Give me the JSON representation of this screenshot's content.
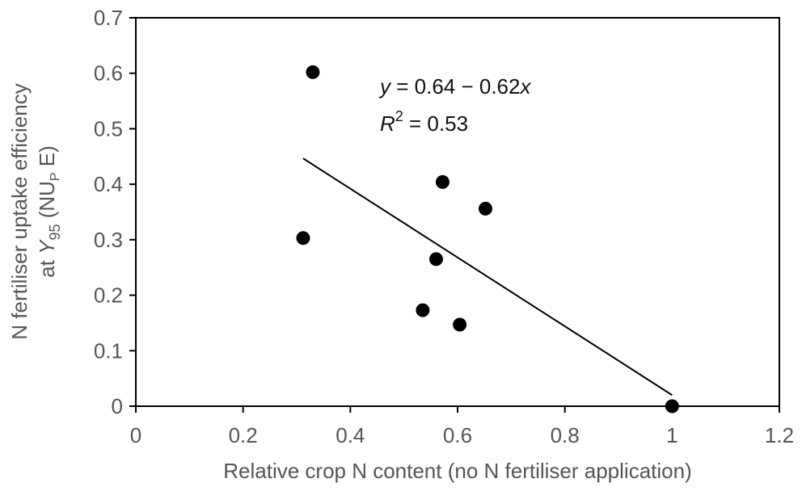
{
  "chart_data": {
    "type": "scatter",
    "xlabel": "Relative crop N content (no N fertiliser application)",
    "ylabel": {
      "line1": "N fertiliser uptake efficiency",
      "line2_prefix": "at ",
      "line2_var": "Y",
      "line2_var_sub": "95",
      "line2_mid": " (NU",
      "line2_mid_sub": "P",
      "line2_suffix": " E)"
    },
    "xlim": [
      0,
      1.2
    ],
    "ylim": [
      0,
      0.7
    ],
    "xticks": [
      "0",
      "0.2",
      "0.4",
      "0.6",
      "0.8",
      "1",
      "1.2"
    ],
    "yticks": [
      "0",
      "0.1",
      "0.2",
      "0.3",
      "0.4",
      "0.5",
      "0.6",
      "0.7"
    ],
    "points": [
      {
        "x": 0.33,
        "y": 0.602
      },
      {
        "x": 0.312,
        "y": 0.303
      },
      {
        "x": 0.572,
        "y": 0.404
      },
      {
        "x": 0.652,
        "y": 0.356
      },
      {
        "x": 0.56,
        "y": 0.265
      },
      {
        "x": 0.535,
        "y": 0.173
      },
      {
        "x": 0.604,
        "y": 0.147
      },
      {
        "x": 1.0,
        "y": 0.0
      }
    ],
    "regression": {
      "intercept": 0.64,
      "slope": -0.62,
      "x_range": [
        0.312,
        1.0
      ]
    },
    "annotation": {
      "eq_var_y": "y",
      "eq_middle": " = 0.64 − 0.62",
      "eq_var_x": "x",
      "r2_var": "R",
      "r2_sup": "2",
      "r2_value": " = 0.53"
    },
    "grid": false,
    "colors": {
      "points": "#000000",
      "line": "#000000",
      "text": "#555555"
    }
  }
}
